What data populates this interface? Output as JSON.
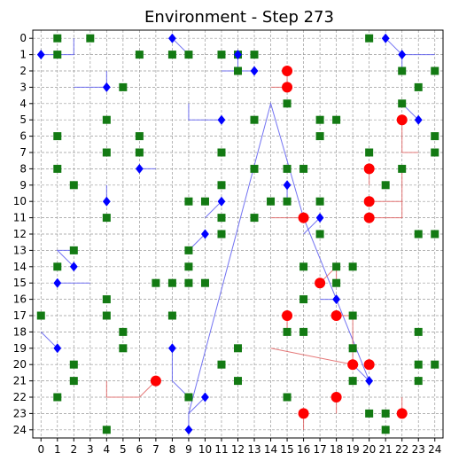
{
  "chart_data": {
    "type": "scatter",
    "title": "Environment - Step 273",
    "xlabel": "",
    "ylabel": "",
    "xlim": [
      -0.5,
      24.5
    ],
    "ylim": [
      24.5,
      -0.5
    ],
    "y_inverted": true,
    "x_ticks": [
      0,
      1,
      2,
      3,
      4,
      5,
      6,
      7,
      8,
      9,
      10,
      11,
      12,
      13,
      14,
      15,
      16,
      17,
      18,
      19,
      20,
      21,
      22,
      23,
      24
    ],
    "y_ticks": [
      0,
      1,
      2,
      3,
      4,
      5,
      6,
      7,
      8,
      9,
      10,
      11,
      12,
      13,
      14,
      15,
      16,
      17,
      18,
      19,
      20,
      21,
      22,
      23,
      24
    ],
    "grid": true,
    "legend": "none",
    "colors": {
      "food": "#137a13",
      "agent": "#0000ff",
      "agent_trail": "#5a5af0",
      "hazard": "#ff0000",
      "hazard_trail": "#e06060",
      "grid": "#999999"
    },
    "series": [
      {
        "marker": "square",
        "color": "#137a13",
        "points": [
          [
            1,
            0
          ],
          [
            3,
            0
          ],
          [
            20,
            0
          ],
          [
            1,
            1
          ],
          [
            6,
            1
          ],
          [
            8,
            1
          ],
          [
            9,
            1
          ],
          [
            11,
            1
          ],
          [
            12,
            1
          ],
          [
            13,
            1
          ],
          [
            12,
            2
          ],
          [
            22,
            2
          ],
          [
            24,
            2
          ],
          [
            5,
            3
          ],
          [
            23,
            3
          ],
          [
            15,
            4
          ],
          [
            22,
            4
          ],
          [
            4,
            5
          ],
          [
            13,
            5
          ],
          [
            17,
            5
          ],
          [
            18,
            5
          ],
          [
            1,
            6
          ],
          [
            6,
            6
          ],
          [
            17,
            6
          ],
          [
            24,
            6
          ],
          [
            4,
            7
          ],
          [
            6,
            7
          ],
          [
            11,
            7
          ],
          [
            20,
            7
          ],
          [
            24,
            7
          ],
          [
            1,
            8
          ],
          [
            13,
            8
          ],
          [
            15,
            8
          ],
          [
            16,
            8
          ],
          [
            22,
            8
          ],
          [
            2,
            9
          ],
          [
            11,
            9
          ],
          [
            21,
            9
          ],
          [
            9,
            10
          ],
          [
            10,
            10
          ],
          [
            14,
            10
          ],
          [
            15,
            10
          ],
          [
            17,
            10
          ],
          [
            4,
            11
          ],
          [
            11,
            11
          ],
          [
            13,
            11
          ],
          [
            11,
            12
          ],
          [
            17,
            12
          ],
          [
            23,
            12
          ],
          [
            24,
            12
          ],
          [
            2,
            13
          ],
          [
            9,
            13
          ],
          [
            1,
            14
          ],
          [
            9,
            14
          ],
          [
            16,
            14
          ],
          [
            18,
            14
          ],
          [
            19,
            14
          ],
          [
            7,
            15
          ],
          [
            8,
            15
          ],
          [
            9,
            15
          ],
          [
            10,
            15
          ],
          [
            18,
            15
          ],
          [
            4,
            16
          ],
          [
            16,
            16
          ],
          [
            0,
            17
          ],
          [
            4,
            17
          ],
          [
            8,
            17
          ],
          [
            19,
            17
          ],
          [
            5,
            18
          ],
          [
            15,
            18
          ],
          [
            16,
            18
          ],
          [
            23,
            18
          ],
          [
            5,
            19
          ],
          [
            12,
            19
          ],
          [
            19,
            19
          ],
          [
            2,
            20
          ],
          [
            11,
            20
          ],
          [
            23,
            20
          ],
          [
            24,
            20
          ],
          [
            2,
            21
          ],
          [
            12,
            21
          ],
          [
            19,
            21
          ],
          [
            23,
            21
          ],
          [
            1,
            22
          ],
          [
            9,
            22
          ],
          [
            15,
            22
          ],
          [
            20,
            23
          ],
          [
            21,
            23
          ],
          [
            4,
            24
          ],
          [
            21,
            24
          ]
        ]
      },
      {
        "marker": "diamond",
        "color": "#0000ff",
        "points": [
          [
            8,
            0
          ],
          [
            21,
            0
          ],
          [
            0,
            1
          ],
          [
            12,
            1
          ],
          [
            22,
            1
          ],
          [
            13,
            2
          ],
          [
            4,
            3
          ],
          [
            11,
            5
          ],
          [
            23,
            5
          ],
          [
            6,
            8
          ],
          [
            15,
            9
          ],
          [
            4,
            10
          ],
          [
            11,
            10
          ],
          [
            17,
            11
          ],
          [
            10,
            12
          ],
          [
            2,
            14
          ],
          [
            1,
            15
          ],
          [
            18,
            16
          ],
          [
            1,
            19
          ],
          [
            8,
            19
          ],
          [
            20,
            21
          ],
          [
            10,
            22
          ],
          [
            9,
            24
          ]
        ]
      },
      {
        "marker": "circle",
        "color": "#ff0000",
        "points": [
          [
            15,
            2
          ],
          [
            15,
            3
          ],
          [
            22,
            5
          ],
          [
            20,
            8
          ],
          [
            20,
            10
          ],
          [
            16,
            11
          ],
          [
            20,
            11
          ],
          [
            17,
            15
          ],
          [
            15,
            17
          ],
          [
            18,
            17
          ],
          [
            19,
            20
          ],
          [
            20,
            20
          ],
          [
            7,
            21
          ],
          [
            18,
            22
          ],
          [
            16,
            23
          ],
          [
            22,
            23
          ]
        ]
      }
    ],
    "trails": [
      {
        "color": "#5a5af0",
        "segments": [
          [
            [
              8,
              0
            ],
            [
              9,
              1
            ]
          ],
          [
            [
              0,
              1
            ],
            [
              2,
              1
            ],
            [
              2,
              0
            ]
          ],
          [
            [
              12,
              1
            ],
            [
              12,
              2
            ],
            [
              11,
              2
            ]
          ],
          [
            [
              13,
              2
            ],
            [
              12,
              2
            ]
          ],
          [
            [
              21,
              0
            ],
            [
              22,
              1
            ],
            [
              24,
              1
            ]
          ],
          [
            [
              22,
              1
            ],
            [
              22,
              2
            ]
          ],
          [
            [
              4,
              3
            ],
            [
              2,
              3
            ]
          ],
          [
            [
              4,
              3
            ],
            [
              4,
              2
            ]
          ],
          [
            [
              11,
              5
            ],
            [
              9,
              5
            ],
            [
              9,
              4
            ]
          ],
          [
            [
              23,
              5
            ],
            [
              22,
              4
            ]
          ],
          [
            [
              6,
              8
            ],
            [
              7,
              8
            ]
          ],
          [
            [
              15,
              9
            ],
            [
              15,
              10
            ]
          ],
          [
            [
              4,
              10
            ],
            [
              4,
              9
            ]
          ],
          [
            [
              11,
              10
            ],
            [
              10,
              11
            ]
          ],
          [
            [
              17,
              11
            ],
            [
              16,
              12
            ]
          ],
          [
            [
              10,
              12
            ],
            [
              9,
              13
            ]
          ],
          [
            [
              2,
              14
            ],
            [
              1,
              13
            ],
            [
              2,
              13
            ]
          ],
          [
            [
              1,
              15
            ],
            [
              3,
              15
            ]
          ],
          [
            [
              18,
              16
            ],
            [
              17,
              16
            ]
          ],
          [
            [
              1,
              19
            ],
            [
              0,
              18
            ]
          ],
          [
            [
              8,
              19
            ],
            [
              8,
              21
            ],
            [
              9,
              22
            ]
          ],
          [
            [
              20,
              21
            ],
            [
              19,
              20
            ]
          ],
          [
            [
              10,
              22
            ],
            [
              9,
              23
            ]
          ],
          [
            [
              9,
              24
            ],
            [
              9,
              23
            ],
            [
              14,
              4
            ],
            [
              16,
              11
            ],
            [
              20,
              21
            ]
          ]
        ]
      },
      {
        "color": "#e06060",
        "segments": [
          [
            [
              15,
              2
            ],
            [
              15,
              3
            ],
            [
              14,
              3
            ]
          ],
          [
            [
              22,
              5
            ],
            [
              22,
              7
            ],
            [
              23,
              7
            ]
          ],
          [
            [
              20,
              8
            ],
            [
              20,
              9
            ]
          ],
          [
            [
              20,
              10
            ],
            [
              22,
              10
            ],
            [
              22,
              8
            ]
          ],
          [
            [
              20,
              11
            ],
            [
              22,
              11
            ],
            [
              22,
              10
            ]
          ],
          [
            [
              16,
              11
            ],
            [
              15,
              11
            ],
            [
              14,
              11
            ]
          ],
          [
            [
              17,
              15
            ],
            [
              18,
              14
            ],
            [
              18,
              15
            ]
          ],
          [
            [
              15,
              17
            ],
            [
              15,
              18
            ]
          ],
          [
            [
              18,
              17
            ],
            [
              19,
              17
            ],
            [
              19,
              20
            ]
          ],
          [
            [
              19,
              20
            ],
            [
              14,
              19
            ]
          ],
          [
            [
              7,
              21
            ],
            [
              6,
              22
            ],
            [
              4,
              22
            ],
            [
              4,
              21
            ]
          ],
          [
            [
              18,
              22
            ],
            [
              18,
              23
            ]
          ],
          [
            [
              16,
              23
            ],
            [
              16,
              24
            ]
          ],
          [
            [
              22,
              23
            ],
            [
              22,
              22
            ]
          ]
        ]
      }
    ]
  }
}
